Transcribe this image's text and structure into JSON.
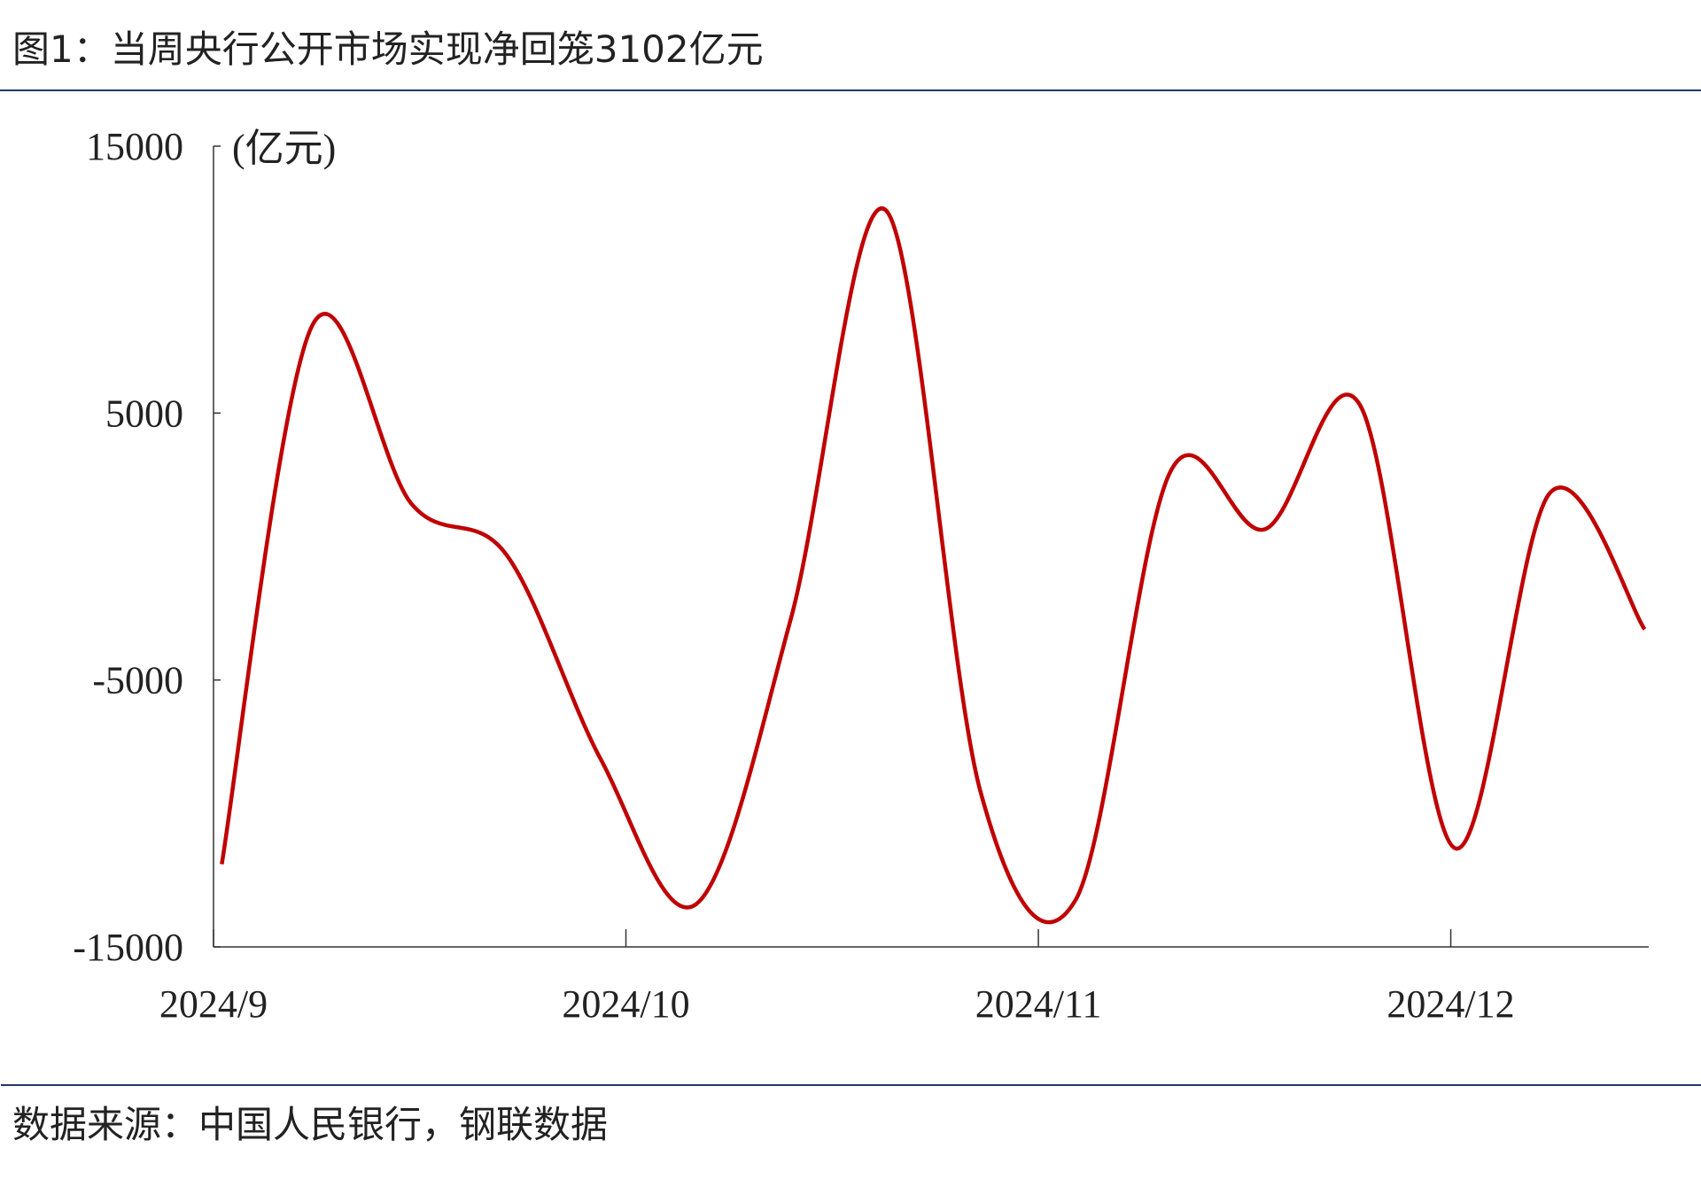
{
  "chart_data": {
    "type": "line",
    "title": "图1：当周央行公开市场实现净回笼3102亿元",
    "y_axis_label": "(亿元)",
    "source": "数据来源：中国人民银行，钢联数据",
    "x": [
      9.02,
      9.24,
      9.48,
      9.71,
      9.94,
      10.17,
      10.4,
      10.63,
      10.86,
      11.09,
      11.32,
      11.55,
      11.78,
      12.01,
      12.24,
      12.47
    ],
    "series": [
      {
        "color": "#c00000",
        "values": [
          -11900,
          8300,
          1600,
          -300,
          -8000,
          -13400,
          -2700,
          12600,
          -9200,
          -13250,
          2800,
          650,
          5300,
          -11300,
          2000,
          -3100
        ]
      }
    ],
    "xlim": [
      9,
      12.48
    ],
    "xticks": [
      {
        "value": 9,
        "label": "2024/9"
      },
      {
        "value": 10,
        "label": "2024/10"
      },
      {
        "value": 11,
        "label": "2024/11"
      },
      {
        "value": 12,
        "label": "2024/12"
      }
    ],
    "ylim": [
      -15000,
      15000
    ],
    "yticks": [
      -15000,
      -5000,
      5000,
      15000
    ],
    "grid": false
  }
}
